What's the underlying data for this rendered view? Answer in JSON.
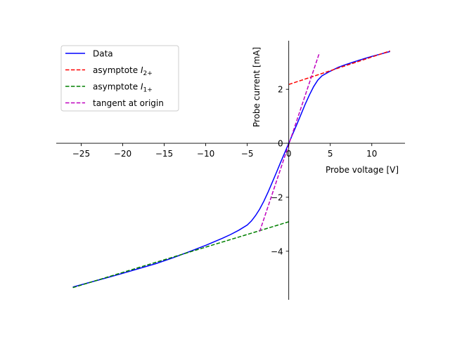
{
  "chart_data": {
    "type": "line",
    "title": "",
    "xlabel": "Probe voltage [V]",
    "ylabel": "Probe current [mA]",
    "xlim": [
      -28,
      14
    ],
    "ylim": [
      -5.8,
      3.8
    ],
    "xticks": [
      -25,
      -20,
      -15,
      -10,
      -5,
      0,
      5,
      10
    ],
    "xtick_labels": [
      "−25",
      "−20",
      "−15",
      "−10",
      "−5",
      "0",
      "5",
      "10"
    ],
    "yticks": [
      -4,
      -2,
      0,
      2
    ],
    "ytick_labels": [
      "−4",
      "−2",
      "0",
      "2"
    ],
    "spines": "centered at origin",
    "grid": false,
    "legend_position": "top-left",
    "series": [
      {
        "name": "Data",
        "color": "#0000ff",
        "style": "solid",
        "x": [
          -26,
          -24,
          -22,
          -20,
          -18,
          -16,
          -14,
          -12,
          -10,
          -8,
          -7,
          -6,
          -5,
          -4.5,
          -4,
          -3.5,
          -3,
          -2.5,
          -2,
          -1.5,
          -1,
          -0.5,
          0,
          0.5,
          1,
          1.5,
          2,
          2.5,
          3,
          3.5,
          4,
          5,
          6,
          7,
          8,
          9,
          10,
          11,
          12.2
        ],
        "y": [
          -5.33,
          -5.16,
          -4.99,
          -4.82,
          -4.64,
          -4.46,
          -4.25,
          -4.02,
          -3.78,
          -3.52,
          -3.38,
          -3.22,
          -3.03,
          -2.88,
          -2.68,
          -2.44,
          -2.15,
          -1.82,
          -1.46,
          -1.09,
          -0.72,
          -0.36,
          0.0,
          0.36,
          0.72,
          1.09,
          1.46,
          1.8,
          2.1,
          2.34,
          2.5,
          2.67,
          2.82,
          2.93,
          3.03,
          3.13,
          3.22,
          3.3,
          3.4
        ]
      },
      {
        "name": "asymptote I2+",
        "color": "#ff0000",
        "style": "dashed",
        "x": [
          0,
          12.2
        ],
        "y": [
          2.18,
          3.42
        ]
      },
      {
        "name": "asymptote I1+",
        "color": "#008000",
        "style": "dashed",
        "x": [
          -26,
          0
        ],
        "y": [
          -5.35,
          -2.91
        ]
      },
      {
        "name": "tangent at origin",
        "color": "#bf00bf",
        "style": "dashed",
        "x": [
          -3.5,
          3.7
        ],
        "y": [
          -3.27,
          3.36
        ]
      }
    ]
  },
  "legend": {
    "items": [
      {
        "prefix": "Data",
        "sub": "",
        "color": "#0000ff",
        "dashed": false
      },
      {
        "prefix": "asymptote ",
        "italic": "I",
        "sub": "2+",
        "color": "#ff0000",
        "dashed": true
      },
      {
        "prefix": "asymptote ",
        "italic": "I",
        "sub": "1+",
        "color": "#008000",
        "dashed": true
      },
      {
        "prefix": "tangent at origin",
        "sub": "",
        "color": "#bf00bf",
        "dashed": true
      }
    ]
  }
}
